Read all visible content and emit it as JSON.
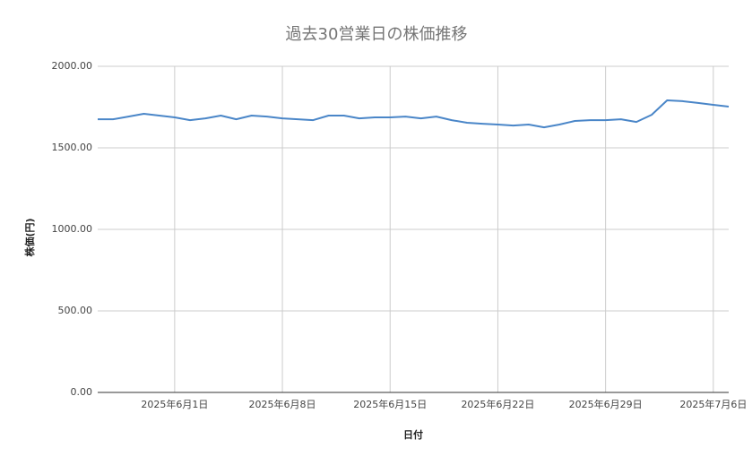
{
  "chart_data": {
    "type": "line",
    "title": "過去30営業日の株価推移",
    "x_label": "日付",
    "y_label": "株価(円)",
    "x": [
      "2025-05-27",
      "2025-05-28",
      "2025-05-29",
      "2025-05-30",
      "2025-05-31",
      "2025-06-01",
      "2025-06-02",
      "2025-06-03",
      "2025-06-04",
      "2025-06-05",
      "2025-06-06",
      "2025-06-07",
      "2025-06-08",
      "2025-06-09",
      "2025-06-10",
      "2025-06-11",
      "2025-06-12",
      "2025-06-13",
      "2025-06-14",
      "2025-06-15",
      "2025-06-16",
      "2025-06-17",
      "2025-06-18",
      "2025-06-19",
      "2025-06-20",
      "2025-06-21",
      "2025-06-22",
      "2025-06-23",
      "2025-06-24",
      "2025-06-25",
      "2025-06-26",
      "2025-06-27",
      "2025-06-28",
      "2025-06-29",
      "2025-06-30",
      "2025-07-01",
      "2025-07-02",
      "2025-07-03",
      "2025-07-04",
      "2025-07-05",
      "2025-07-06",
      "2025-07-07"
    ],
    "series": [
      {
        "name": "株価",
        "color": "#4a86c8",
        "values": [
          1675,
          1675,
          1692,
          1709,
          1698,
          1687,
          1670,
          1681,
          1698,
          1675,
          1698,
          1692,
          1681,
          1675,
          1670,
          1698,
          1698,
          1681,
          1687,
          1687,
          1692,
          1681,
          1692,
          1670,
          1654,
          1648,
          1643,
          1637,
          1643,
          1626,
          1643,
          1665,
          1670,
          1670,
          1675,
          1659,
          1703,
          1791,
          1786,
          1775,
          1764,
          1753
        ]
      }
    ],
    "xlim": [
      "2025-05-27",
      "2025-07-07"
    ],
    "xticks": [
      {
        "value": "2025-06-01",
        "label": "2025年6月1日"
      },
      {
        "value": "2025-06-08",
        "label": "2025年6月8日"
      },
      {
        "value": "2025-06-15",
        "label": "2025年6月15日"
      },
      {
        "value": "2025-06-22",
        "label": "2025年6月22日"
      },
      {
        "value": "2025-06-29",
        "label": "2025年6月29日"
      },
      {
        "value": "2025-07-06",
        "label": "2025年7月6日"
      }
    ],
    "ylim": [
      0,
      2000
    ],
    "yticks": [
      {
        "value": 0,
        "label": "0.00"
      },
      {
        "value": 500,
        "label": "500.00"
      },
      {
        "value": 1000,
        "label": "1000.00"
      },
      {
        "value": 1500,
        "label": "1500.00"
      },
      {
        "value": 2000,
        "label": "2000.00"
      }
    ],
    "grid": true
  }
}
